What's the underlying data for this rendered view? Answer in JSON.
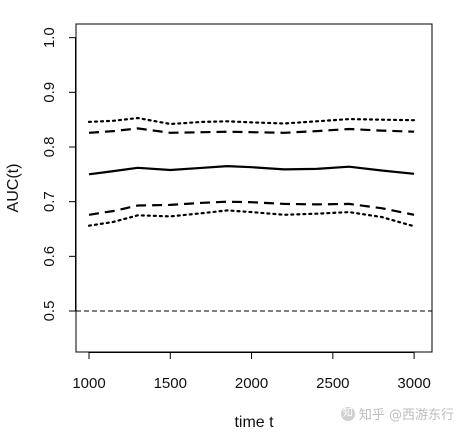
{
  "chart_data": {
    "type": "line",
    "title": "",
    "xlabel": "time t",
    "ylabel": "AUC(t)",
    "xlim": [
      920,
      3110
    ],
    "ylim": [
      0.425,
      1.025
    ],
    "xticks": [
      1000,
      1500,
      2000,
      2500,
      3000
    ],
    "yticks": [
      0.5,
      0.6,
      0.7,
      0.8,
      0.9,
      1.0
    ],
    "ytick_labels": [
      "0.5",
      "0.6",
      "0.7",
      "0.8",
      "0.9",
      "1.0"
    ],
    "grid": false,
    "series": [
      {
        "style": "solid",
        "color": "#000000",
        "x": [
          1000,
          1150,
          1300,
          1500,
          1700,
          1850,
          2000,
          2200,
          2400,
          2600,
          2800,
          3000
        ],
        "y": [
          0.75,
          0.756,
          0.762,
          0.758,
          0.762,
          0.765,
          0.763,
          0.759,
          0.76,
          0.764,
          0.757,
          0.751
        ]
      },
      {
        "style": "dashed",
        "color": "#000000",
        "x": [
          1000,
          1150,
          1300,
          1500,
          1700,
          1850,
          2000,
          2200,
          2400,
          2600,
          2800,
          3000
        ],
        "y": [
          0.826,
          0.829,
          0.834,
          0.826,
          0.827,
          0.828,
          0.827,
          0.826,
          0.829,
          0.833,
          0.83,
          0.828
        ]
      },
      {
        "style": "dashed",
        "color": "#000000",
        "x": [
          1000,
          1150,
          1300,
          1500,
          1700,
          1850,
          2000,
          2200,
          2400,
          2600,
          2800,
          3000
        ],
        "y": [
          0.676,
          0.683,
          0.693,
          0.694,
          0.698,
          0.7,
          0.699,
          0.696,
          0.695,
          0.696,
          0.688,
          0.676
        ]
      },
      {
        "style": "dotted",
        "color": "#000000",
        "x": [
          1000,
          1150,
          1300,
          1500,
          1700,
          1850,
          2000,
          2200,
          2400,
          2600,
          2800,
          3000
        ],
        "y": [
          0.846,
          0.848,
          0.853,
          0.842,
          0.846,
          0.847,
          0.845,
          0.843,
          0.847,
          0.851,
          0.85,
          0.849
        ]
      },
      {
        "style": "dotted",
        "color": "#000000",
        "x": [
          1000,
          1150,
          1300,
          1500,
          1700,
          1850,
          2000,
          2200,
          2400,
          2600,
          2800,
          3000
        ],
        "y": [
          0.656,
          0.663,
          0.675,
          0.673,
          0.679,
          0.684,
          0.681,
          0.676,
          0.678,
          0.681,
          0.672,
          0.655
        ]
      }
    ],
    "reference_line": {
      "y": 0.5,
      "style": "dashed",
      "color": "#000000"
    }
  },
  "watermark": {
    "text": "知乎 @西游东行"
  }
}
